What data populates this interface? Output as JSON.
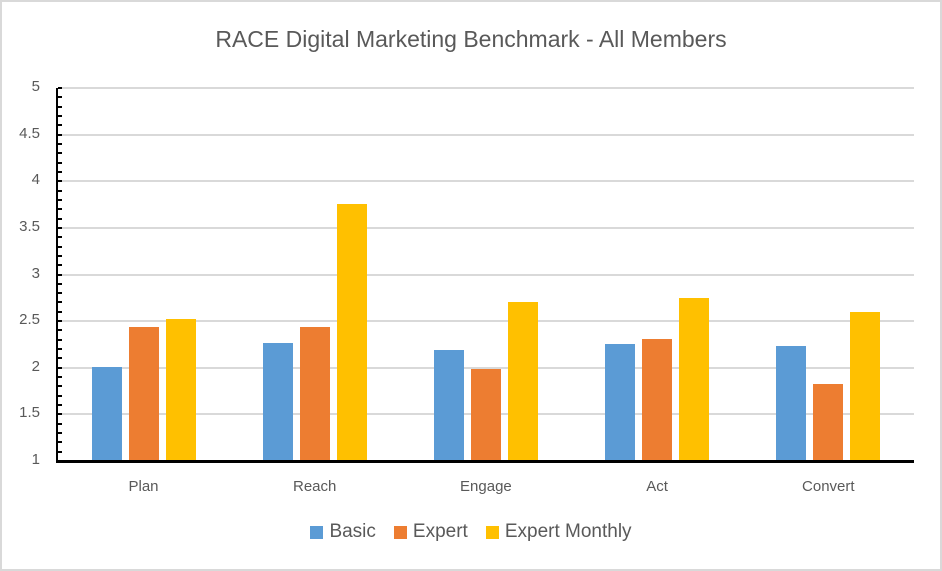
{
  "chart_data": {
    "type": "bar",
    "title": "RACE Digital Marketing Benchmark  - All Members",
    "xlabel": "",
    "ylabel": "",
    "categories": [
      "Plan",
      "Reach",
      "Engage",
      "Act",
      "Convert"
    ],
    "series": [
      {
        "name": "Basic",
        "color": "#5b9bd5",
        "values": [
          2.01,
          2.27,
          2.19,
          2.26,
          2.23
        ]
      },
      {
        "name": "Expert",
        "color": "#ed7d31",
        "values": [
          2.44,
          2.44,
          1.99,
          2.31,
          1.83
        ]
      },
      {
        "name": "Expert Monthly",
        "color": "#ffc000",
        "values": [
          2.52,
          3.76,
          2.7,
          2.75,
          2.6
        ]
      }
    ],
    "ylim": [
      1,
      5
    ],
    "yticks": [
      "1",
      "1.5",
      "2",
      "2.5",
      "3",
      "3.5",
      "4",
      "4.5",
      "5"
    ],
    "grid": true,
    "legend_position": "bottom"
  }
}
